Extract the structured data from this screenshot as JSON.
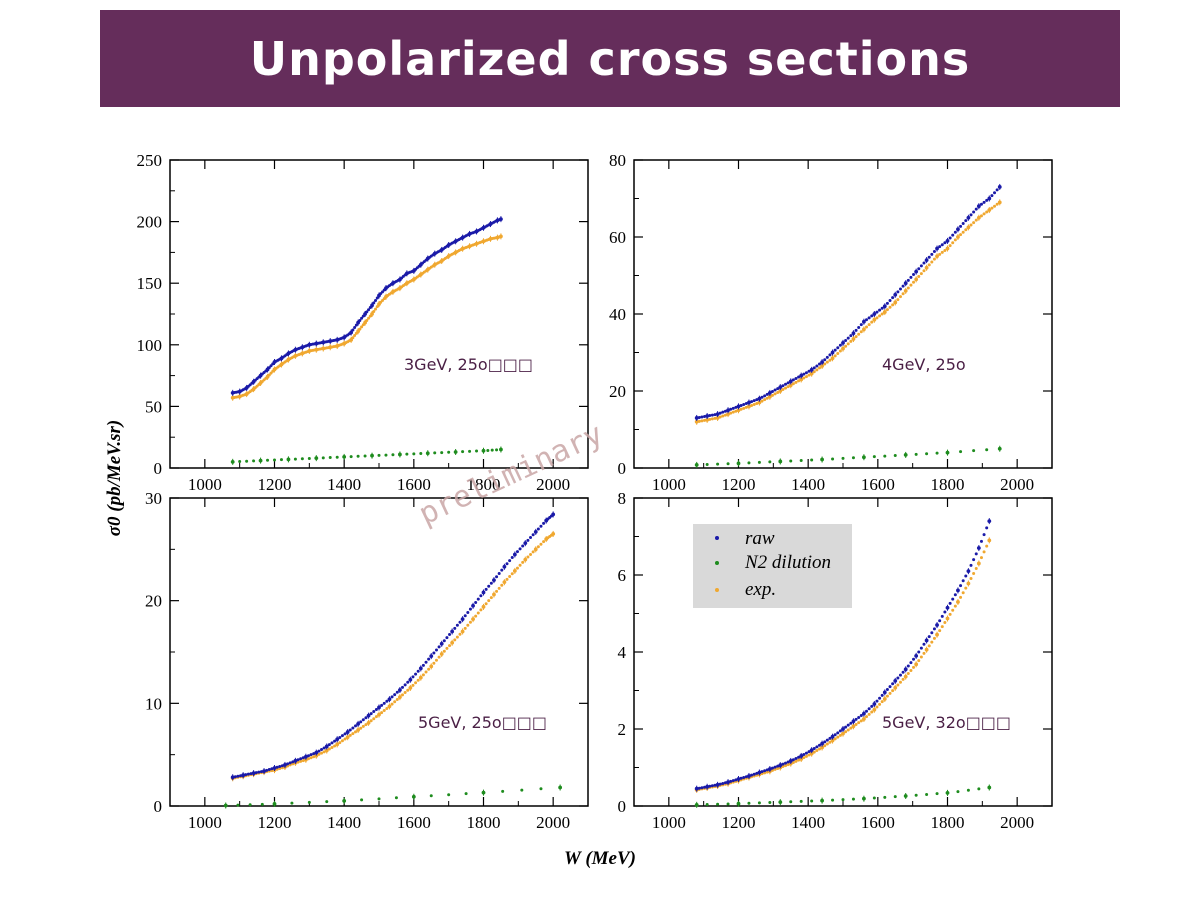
{
  "slide": {
    "title": "Unpolarized cross sections"
  },
  "watermark": "preliminary",
  "axes": {
    "xlabel": "W (MeV)",
    "ylabel": "σ0 (pb/MeV.sr)"
  },
  "legend": {
    "placement": "inside bottom-right panel, top-left",
    "entries": [
      {
        "label": "raw",
        "color": "#1a1aa8"
      },
      {
        "label": "N2 dilution",
        "color": "#1e8c1e"
      },
      {
        "label": "exp.",
        "color": "#f0a830"
      }
    ]
  },
  "colors": {
    "title_bg": "#652d5b",
    "raw": "#1a1aa8",
    "n2": "#1e8c1e",
    "exp": "#f0a830"
  },
  "chart_data": [
    {
      "type": "scatter",
      "label": "3GeV, 25o□□□",
      "xlim": [
        900,
        2100
      ],
      "ylim": [
        0,
        250
      ],
      "xticks": [
        1000,
        1200,
        1400,
        1600,
        1800,
        2000
      ],
      "yticks": [
        0,
        50,
        100,
        150,
        200,
        250
      ],
      "series": [
        {
          "name": "raw",
          "x": [
            1080,
            1100,
            1120,
            1140,
            1160,
            1180,
            1200,
            1220,
            1240,
            1260,
            1280,
            1300,
            1320,
            1340,
            1360,
            1380,
            1400,
            1420,
            1440,
            1460,
            1480,
            1500,
            1520,
            1540,
            1560,
            1580,
            1600,
            1620,
            1640,
            1660,
            1680,
            1700,
            1720,
            1740,
            1760,
            1780,
            1800,
            1820,
            1840,
            1850
          ],
          "y": [
            61,
            62,
            65,
            70,
            75,
            80,
            86,
            89,
            93,
            96,
            98,
            100,
            101,
            102,
            103,
            104,
            106,
            110,
            118,
            125,
            132,
            140,
            146,
            150,
            153,
            158,
            160,
            165,
            170,
            174,
            177,
            181,
            184,
            187,
            190,
            192,
            195,
            198,
            201,
            202
          ]
        },
        {
          "name": "N2 dilution",
          "x": [
            1080,
            1160,
            1240,
            1320,
            1400,
            1480,
            1560,
            1640,
            1720,
            1800,
            1850
          ],
          "y": [
            5,
            6,
            7,
            8,
            9,
            10,
            11,
            12,
            13,
            14,
            15
          ]
        },
        {
          "name": "exp.",
          "x": [
            1080,
            1100,
            1120,
            1140,
            1160,
            1180,
            1200,
            1220,
            1240,
            1260,
            1280,
            1300,
            1320,
            1340,
            1360,
            1380,
            1400,
            1420,
            1440,
            1460,
            1480,
            1500,
            1520,
            1540,
            1560,
            1580,
            1600,
            1620,
            1640,
            1660,
            1680,
            1700,
            1720,
            1740,
            1760,
            1780,
            1800,
            1820,
            1840,
            1850
          ],
          "y": [
            57,
            58,
            60,
            64,
            69,
            74,
            80,
            84,
            88,
            91,
            93,
            95,
            96,
            97,
            98,
            99,
            101,
            104,
            111,
            118,
            125,
            133,
            139,
            143,
            146,
            150,
            153,
            157,
            161,
            165,
            168,
            172,
            175,
            178,
            180,
            182,
            184,
            186,
            187,
            188
          ]
        }
      ]
    },
    {
      "type": "scatter",
      "label": "4GeV, 25o",
      "xlim": [
        900,
        2100
      ],
      "ylim": [
        0,
        80
      ],
      "xticks": [
        1000,
        1200,
        1400,
        1600,
        1800,
        2000
      ],
      "yticks": [
        0,
        20,
        40,
        60,
        80
      ],
      "series": [
        {
          "name": "raw",
          "x": [
            1080,
            1110,
            1140,
            1170,
            1200,
            1230,
            1260,
            1290,
            1320,
            1350,
            1380,
            1410,
            1440,
            1470,
            1500,
            1530,
            1560,
            1590,
            1620,
            1650,
            1680,
            1710,
            1740,
            1770,
            1800,
            1830,
            1860,
            1890,
            1920,
            1950
          ],
          "y": [
            13,
            13.5,
            14,
            15,
            16,
            17,
            18,
            19.5,
            21,
            22.5,
            24,
            25.5,
            27.5,
            30,
            32.5,
            35,
            38,
            40,
            42,
            45,
            48,
            51,
            54,
            57,
            59,
            62,
            65,
            68,
            70,
            73
          ]
        },
        {
          "name": "N2 dilution",
          "x": [
            1080,
            1200,
            1320,
            1440,
            1560,
            1680,
            1800,
            1950
          ],
          "y": [
            0.8,
            1.2,
            1.7,
            2.2,
            2.8,
            3.4,
            4.0,
            5.0
          ]
        },
        {
          "name": "exp.",
          "x": [
            1080,
            1110,
            1140,
            1170,
            1200,
            1230,
            1260,
            1290,
            1320,
            1350,
            1380,
            1410,
            1440,
            1470,
            1500,
            1530,
            1560,
            1590,
            1620,
            1650,
            1680,
            1710,
            1740,
            1770,
            1800,
            1830,
            1860,
            1890,
            1920,
            1950
          ],
          "y": [
            12,
            12.5,
            13,
            14,
            15,
            16,
            17,
            18.5,
            20,
            21.5,
            23,
            24.5,
            26.5,
            28.5,
            31,
            33.5,
            36,
            38.5,
            40.5,
            43,
            46,
            49,
            52,
            55,
            57,
            60,
            62.5,
            65,
            67,
            69
          ]
        }
      ]
    },
    {
      "type": "scatter",
      "label": "5GeV, 25o□□□",
      "xlim": [
        900,
        2100
      ],
      "ylim": [
        0,
        30
      ],
      "xticks": [
        1000,
        1200,
        1400,
        1600,
        1800,
        2000
      ],
      "yticks": [
        0,
        10,
        20,
        30
      ],
      "series": [
        {
          "name": "raw",
          "x": [
            1080,
            1110,
            1140,
            1170,
            1200,
            1230,
            1260,
            1290,
            1320,
            1350,
            1380,
            1410,
            1440,
            1470,
            1500,
            1530,
            1560,
            1590,
            1620,
            1650,
            1680,
            1710,
            1740,
            1770,
            1800,
            1830,
            1860,
            1890,
            1920,
            1950,
            1980,
            2000
          ],
          "y": [
            2.8,
            3.0,
            3.2,
            3.4,
            3.7,
            4.0,
            4.4,
            4.8,
            5.2,
            5.8,
            6.5,
            7.2,
            8.0,
            8.8,
            9.6,
            10.4,
            11.3,
            12.3,
            13.4,
            14.6,
            15.8,
            17.0,
            18.2,
            19.5,
            20.8,
            22.0,
            23.3,
            24.5,
            25.6,
            26.7,
            27.8,
            28.4
          ]
        },
        {
          "name": "N2 dilution",
          "x": [
            1060,
            1200,
            1400,
            1600,
            1800,
            2020
          ],
          "y": [
            0.05,
            0.2,
            0.5,
            0.9,
            1.3,
            1.8
          ]
        },
        {
          "name": "exp.",
          "x": [
            1080,
            1110,
            1140,
            1170,
            1200,
            1230,
            1260,
            1290,
            1320,
            1350,
            1380,
            1410,
            1440,
            1470,
            1500,
            1530,
            1560,
            1590,
            1620,
            1650,
            1680,
            1710,
            1740,
            1770,
            1800,
            1830,
            1860,
            1890,
            1920,
            1950,
            1980,
            2000
          ],
          "y": [
            2.7,
            2.9,
            3.1,
            3.3,
            3.5,
            3.8,
            4.2,
            4.5,
            4.9,
            5.4,
            6.0,
            6.7,
            7.4,
            8.1,
            8.9,
            9.7,
            10.6,
            11.5,
            12.5,
            13.6,
            14.8,
            15.9,
            17.0,
            18.2,
            19.4,
            20.6,
            21.8,
            22.9,
            24.0,
            25.0,
            26.0,
            26.5
          ]
        }
      ]
    },
    {
      "type": "scatter",
      "label": "5GeV, 32o□□□",
      "xlim": [
        900,
        2100
      ],
      "ylim": [
        0,
        8
      ],
      "xticks": [
        1000,
        1200,
        1400,
        1600,
        1800,
        2000
      ],
      "yticks": [
        0,
        2,
        4,
        6,
        8
      ],
      "series": [
        {
          "name": "raw",
          "x": [
            1080,
            1110,
            1140,
            1170,
            1200,
            1230,
            1260,
            1290,
            1320,
            1350,
            1380,
            1410,
            1440,
            1470,
            1500,
            1530,
            1560,
            1590,
            1620,
            1650,
            1680,
            1710,
            1740,
            1770,
            1800,
            1830,
            1860,
            1890,
            1920
          ],
          "y": [
            0.45,
            0.5,
            0.55,
            0.62,
            0.7,
            0.78,
            0.87,
            0.96,
            1.06,
            1.17,
            1.3,
            1.45,
            1.62,
            1.8,
            2.0,
            2.2,
            2.4,
            2.65,
            2.95,
            3.25,
            3.55,
            3.9,
            4.3,
            4.7,
            5.15,
            5.6,
            6.1,
            6.7,
            7.4
          ]
        },
        {
          "name": "N2 dilution",
          "x": [
            1080,
            1200,
            1320,
            1440,
            1560,
            1680,
            1800,
            1920
          ],
          "y": [
            0.03,
            0.06,
            0.1,
            0.14,
            0.19,
            0.26,
            0.34,
            0.48
          ]
        },
        {
          "name": "exp.",
          "x": [
            1080,
            1110,
            1140,
            1170,
            1200,
            1230,
            1260,
            1290,
            1320,
            1350,
            1380,
            1410,
            1440,
            1470,
            1500,
            1530,
            1560,
            1590,
            1620,
            1650,
            1680,
            1710,
            1740,
            1770,
            1800,
            1830,
            1860,
            1890,
            1920
          ],
          "y": [
            0.42,
            0.47,
            0.52,
            0.58,
            0.66,
            0.74,
            0.82,
            0.9,
            1.0,
            1.1,
            1.22,
            1.36,
            1.52,
            1.7,
            1.88,
            2.07,
            2.26,
            2.5,
            2.78,
            3.07,
            3.36,
            3.68,
            4.06,
            4.45,
            4.87,
            5.3,
            5.78,
            6.3,
            6.9
          ]
        }
      ]
    }
  ]
}
